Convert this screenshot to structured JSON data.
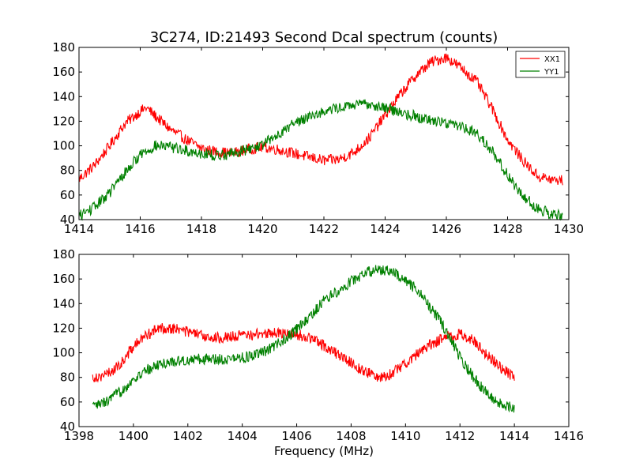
{
  "title": "3C274, ID:21493 Second Dcal spectrum (counts)",
  "xlabel": "Frequency (MHz)",
  "legend": {
    "placement": "top-right",
    "entries": [
      "XX1",
      "YY1"
    ]
  },
  "colors": {
    "XX1": "#ff0000",
    "YY1": "#008000"
  },
  "chart_data": [
    {
      "type": "line",
      "title": "3C274, ID:21493 Second Dcal spectrum (counts)",
      "xlabel": "",
      "ylabel": "",
      "xlim": [
        1414,
        1430
      ],
      "ylim": [
        40,
        180
      ],
      "xticks": [
        1414,
        1416,
        1418,
        1420,
        1422,
        1424,
        1426,
        1428,
        1430
      ],
      "yticks": [
        40,
        60,
        80,
        100,
        120,
        140,
        160,
        180
      ],
      "grid": false,
      "legend": "top-right",
      "series": [
        {
          "name": "XX1",
          "color": "#ff0000",
          "x": [
            1414.0,
            1414.5,
            1415.0,
            1415.5,
            1416.0,
            1416.2,
            1416.5,
            1417.0,
            1417.5,
            1418.0,
            1418.5,
            1419.0,
            1419.5,
            1420.0,
            1420.5,
            1421.0,
            1421.5,
            1422.0,
            1422.5,
            1423.0,
            1423.5,
            1424.0,
            1424.5,
            1425.0,
            1425.5,
            1426.0,
            1426.5,
            1427.0,
            1427.5,
            1428.0,
            1428.5,
            1429.0,
            1429.5,
            1429.8
          ],
          "y": [
            73,
            84,
            100,
            118,
            128,
            131,
            124,
            113,
            105,
            98,
            95,
            94,
            97,
            99,
            97,
            94,
            91,
            88,
            89,
            95,
            107,
            125,
            142,
            157,
            168,
            172,
            163,
            152,
            130,
            105,
            88,
            75,
            72,
            72
          ]
        },
        {
          "name": "YY1",
          "color": "#008000",
          "x": [
            1414.0,
            1414.5,
            1415.0,
            1415.5,
            1416.0,
            1416.5,
            1417.0,
            1417.5,
            1418.0,
            1418.5,
            1419.0,
            1419.5,
            1420.0,
            1420.5,
            1421.0,
            1421.5,
            1422.0,
            1422.5,
            1423.0,
            1423.5,
            1424.0,
            1424.5,
            1425.0,
            1425.5,
            1426.0,
            1426.5,
            1427.0,
            1427.5,
            1428.0,
            1428.5,
            1429.0,
            1429.5,
            1429.8
          ],
          "y": [
            43,
            50,
            62,
            78,
            93,
            100,
            99,
            96,
            94,
            92,
            94,
            97,
            101,
            109,
            118,
            124,
            128,
            131,
            133,
            134,
            131,
            127,
            124,
            121,
            119,
            116,
            110,
            96,
            76,
            59,
            49,
            44,
            43
          ]
        }
      ]
    },
    {
      "type": "line",
      "title": "",
      "xlabel": "Frequency (MHz)",
      "ylabel": "",
      "xlim": [
        1398,
        1416
      ],
      "ylim": [
        40,
        180
      ],
      "xticks": [
        1398,
        1400,
        1402,
        1404,
        1406,
        1408,
        1410,
        1412,
        1414,
        1416
      ],
      "yticks": [
        40,
        60,
        80,
        100,
        120,
        140,
        160,
        180
      ],
      "grid": false,
      "series": [
        {
          "name": "XX1",
          "color": "#ff0000",
          "x": [
            1398.5,
            1399.0,
            1399.5,
            1400.0,
            1400.5,
            1401.0,
            1401.5,
            1402.0,
            1402.5,
            1403.0,
            1403.5,
            1404.0,
            1404.5,
            1405.0,
            1405.5,
            1406.0,
            1406.5,
            1407.0,
            1407.5,
            1408.0,
            1408.5,
            1409.0,
            1409.5,
            1410.0,
            1410.5,
            1411.0,
            1411.5,
            1412.0,
            1412.5,
            1413.0,
            1413.5,
            1414.0
          ],
          "y": [
            80,
            82,
            90,
            105,
            115,
            120,
            120,
            117,
            114,
            112,
            113,
            114,
            115,
            116,
            116,
            115,
            112,
            106,
            99,
            92,
            85,
            80,
            83,
            92,
            100,
            108,
            113,
            115,
            110,
            98,
            88,
            80
          ]
        },
        {
          "name": "YY1",
          "color": "#008000",
          "x": [
            1398.5,
            1399.0,
            1399.5,
            1400.0,
            1400.5,
            1401.0,
            1401.5,
            1402.0,
            1402.5,
            1403.0,
            1403.5,
            1404.0,
            1404.5,
            1405.0,
            1405.5,
            1406.0,
            1406.5,
            1407.0,
            1407.5,
            1408.0,
            1408.5,
            1409.0,
            1409.5,
            1410.0,
            1410.5,
            1411.0,
            1411.5,
            1412.0,
            1412.5,
            1413.0,
            1413.5,
            1414.0
          ],
          "y": [
            56,
            60,
            68,
            78,
            86,
            91,
            93,
            94,
            95,
            95,
            95,
            96,
            98,
            103,
            110,
            119,
            129,
            143,
            150,
            158,
            165,
            168,
            166,
            158,
            150,
            134,
            118,
            96,
            80,
            67,
            58,
            55
          ]
        }
      ]
    }
  ]
}
